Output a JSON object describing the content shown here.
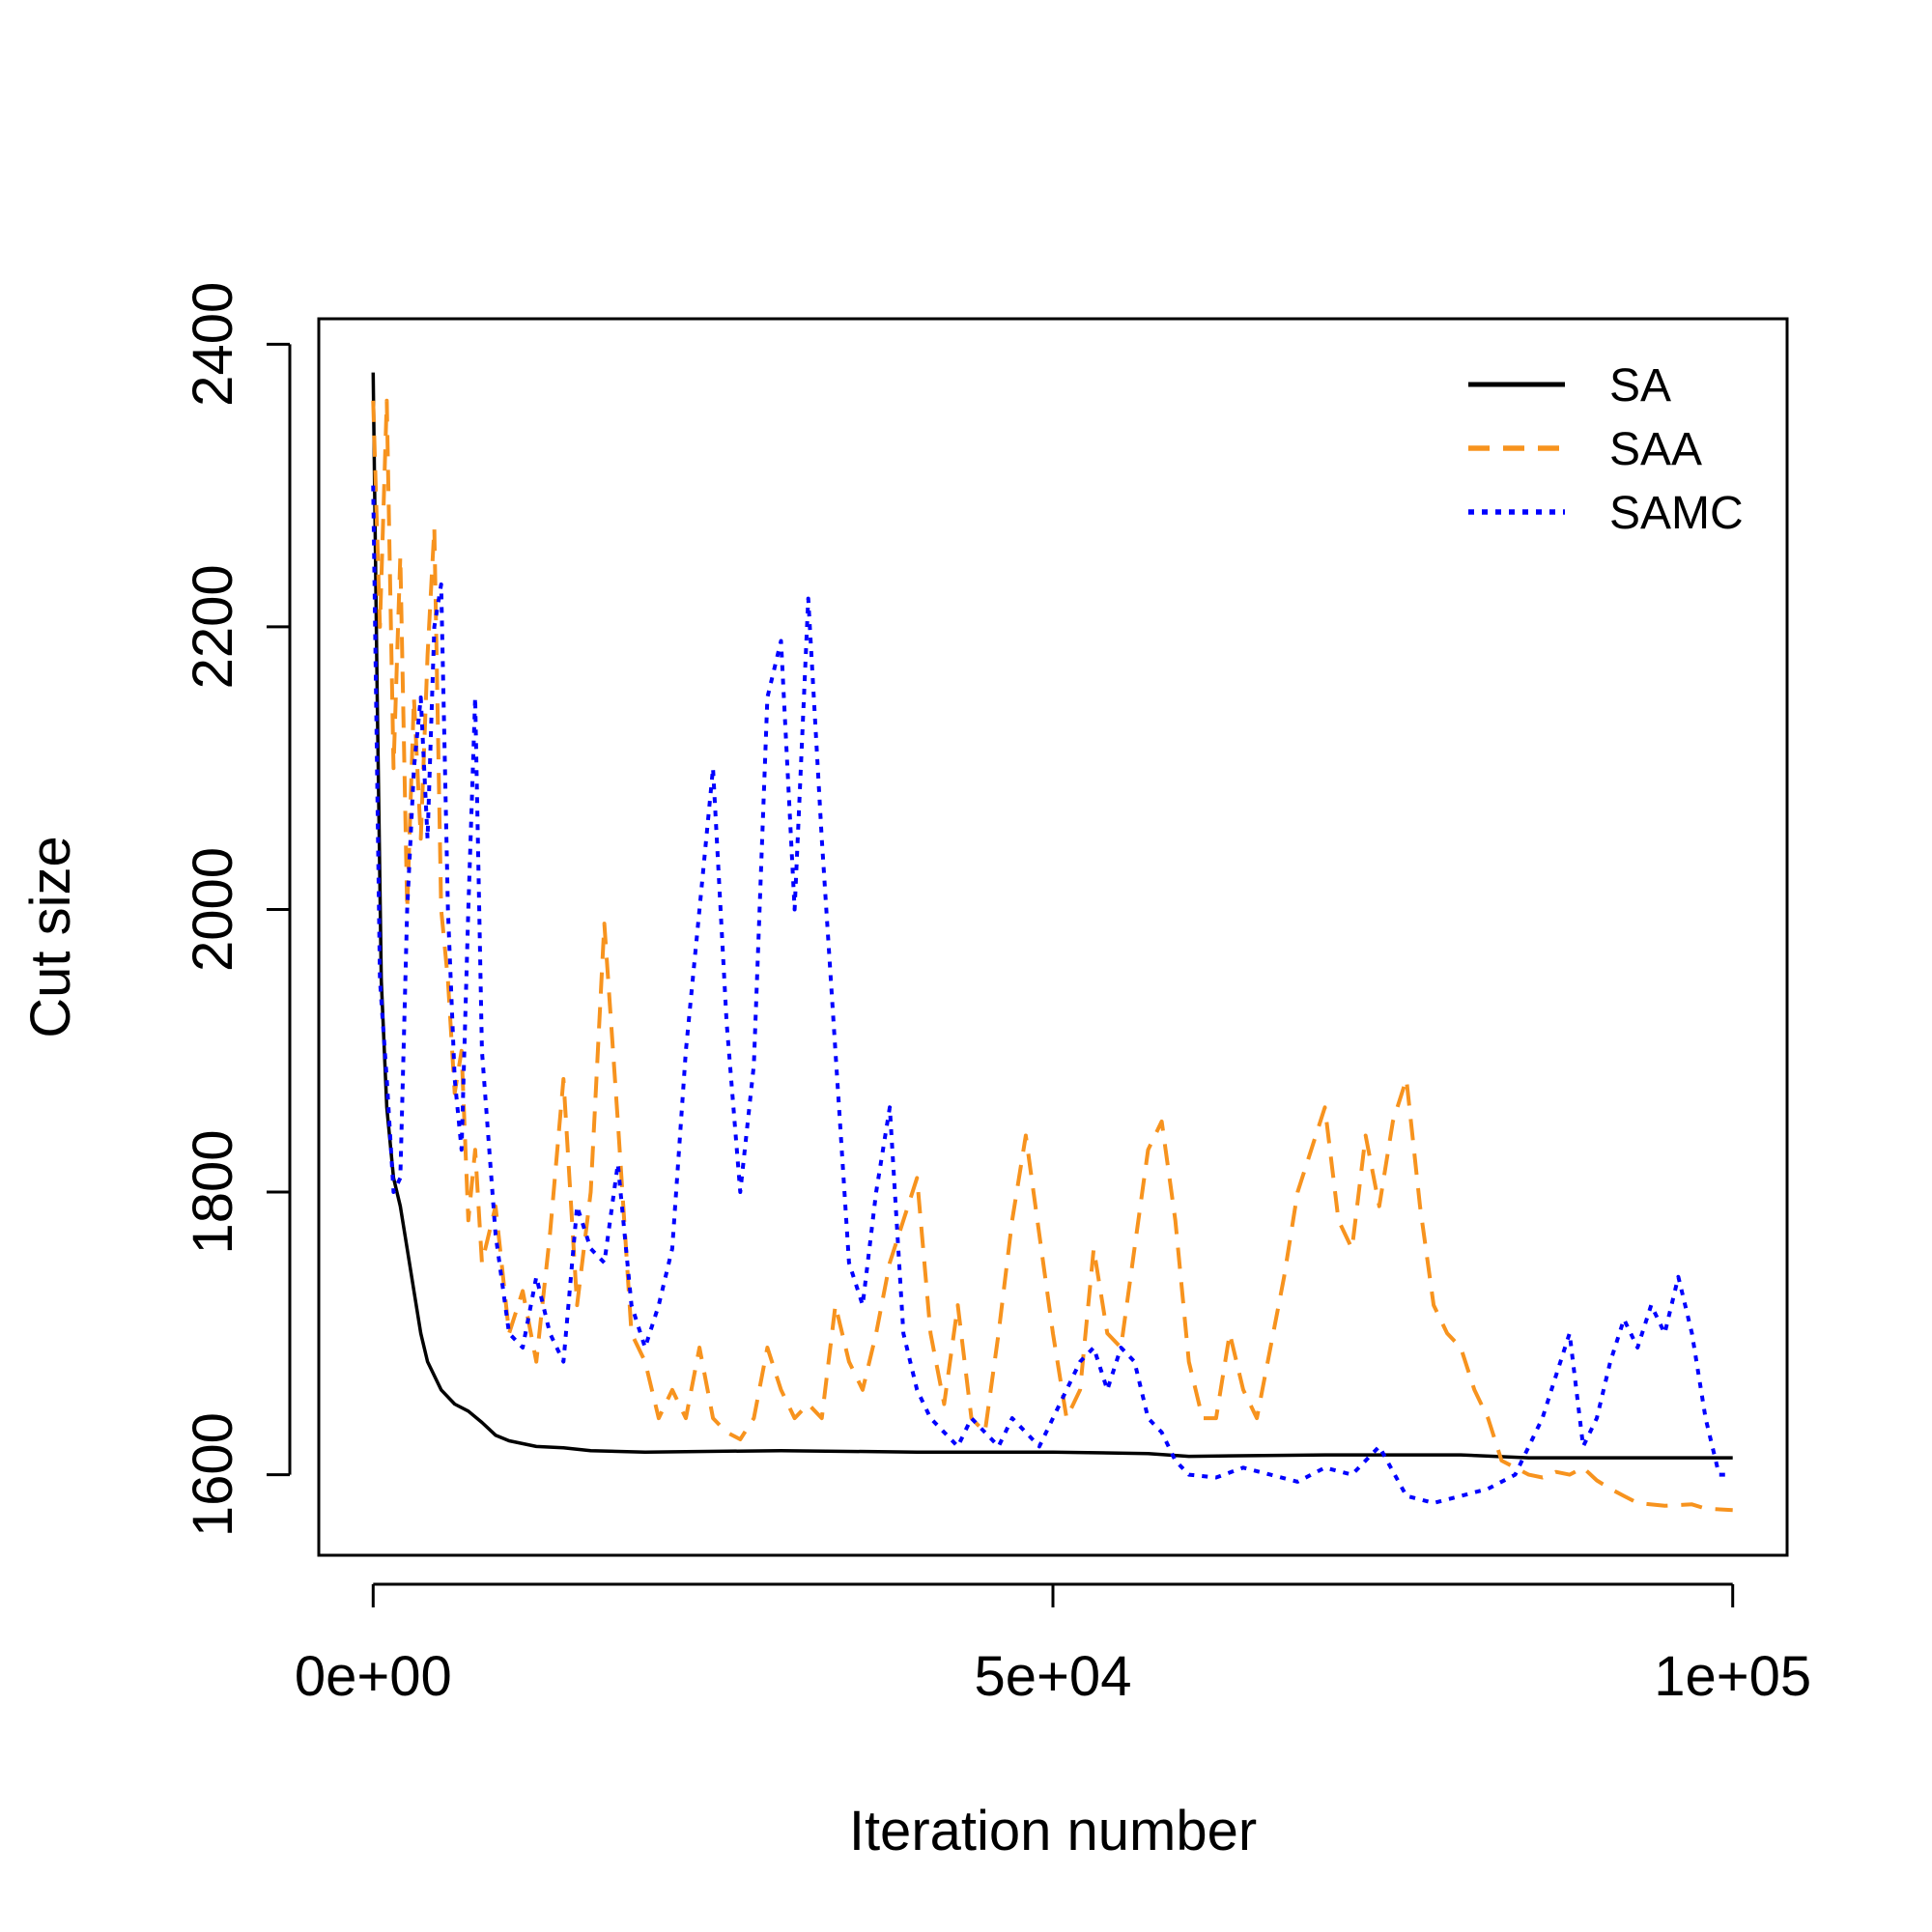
{
  "chart_data": {
    "type": "line",
    "title": "",
    "xlabel": "Iteration number",
    "ylabel": "Cut size",
    "xlim": [
      -4000,
      104000
    ],
    "ylim": [
      1543,
      2418
    ],
    "x_ticks": [
      0,
      50000,
      100000
    ],
    "x_tick_labels": [
      "0e+00",
      "5e+04",
      "1e+05"
    ],
    "y_ticks": [
      1600,
      1800,
      2000,
      2200,
      2400
    ],
    "y_tick_labels": [
      "1600",
      "1800",
      "2000",
      "2200",
      "2400"
    ],
    "grid": false,
    "legend_position": "top-right",
    "series": [
      {
        "name": "SA",
        "color": "#000000",
        "dash": "solid",
        "points": [
          [
            0,
            2380
          ],
          [
            300,
            2150
          ],
          [
            600,
            1950
          ],
          [
            1000,
            1860
          ],
          [
            1500,
            1810
          ],
          [
            2000,
            1790
          ],
          [
            2500,
            1760
          ],
          [
            3000,
            1730
          ],
          [
            3500,
            1700
          ],
          [
            4000,
            1680
          ],
          [
            5000,
            1660
          ],
          [
            6000,
            1650
          ],
          [
            7000,
            1645
          ],
          [
            8000,
            1637
          ],
          [
            9000,
            1628
          ],
          [
            10000,
            1624
          ],
          [
            12000,
            1620
          ],
          [
            14000,
            1619
          ],
          [
            16000,
            1617
          ],
          [
            20000,
            1616
          ],
          [
            30000,
            1617
          ],
          [
            40000,
            1616
          ],
          [
            50000,
            1616
          ],
          [
            57000,
            1615
          ],
          [
            60000,
            1613
          ],
          [
            70000,
            1614
          ],
          [
            80000,
            1614
          ],
          [
            85000,
            1612
          ],
          [
            90000,
            1612
          ],
          [
            100000,
            1612
          ]
        ]
      },
      {
        "name": "SAA",
        "color": "#F7931E",
        "dash": "long-dash",
        "points": [
          [
            0,
            2360
          ],
          [
            500,
            2200
          ],
          [
            1000,
            2360
          ],
          [
            1500,
            2100
          ],
          [
            2000,
            2250
          ],
          [
            2500,
            2000
          ],
          [
            3000,
            2150
          ],
          [
            3500,
            2050
          ],
          [
            4000,
            2180
          ],
          [
            4500,
            2270
          ],
          [
            5000,
            2000
          ],
          [
            5500,
            1950
          ],
          [
            6000,
            1870
          ],
          [
            6500,
            1900
          ],
          [
            7000,
            1780
          ],
          [
            7500,
            1830
          ],
          [
            8000,
            1750
          ],
          [
            9000,
            1790
          ],
          [
            10000,
            1700
          ],
          [
            11000,
            1730
          ],
          [
            12000,
            1680
          ],
          [
            13000,
            1770
          ],
          [
            14000,
            1880
          ],
          [
            15000,
            1720
          ],
          [
            16000,
            1800
          ],
          [
            17000,
            1990
          ],
          [
            18000,
            1850
          ],
          [
            19000,
            1700
          ],
          [
            20000,
            1680
          ],
          [
            21000,
            1640
          ],
          [
            22000,
            1660
          ],
          [
            23000,
            1640
          ],
          [
            24000,
            1690
          ],
          [
            25000,
            1640
          ],
          [
            26000,
            1630
          ],
          [
            27000,
            1625
          ],
          [
            28000,
            1640
          ],
          [
            29000,
            1690
          ],
          [
            30000,
            1660
          ],
          [
            31000,
            1640
          ],
          [
            32000,
            1650
          ],
          [
            33000,
            1640
          ],
          [
            34000,
            1720
          ],
          [
            35000,
            1680
          ],
          [
            36000,
            1660
          ],
          [
            37000,
            1700
          ],
          [
            38000,
            1750
          ],
          [
            39000,
            1780
          ],
          [
            40000,
            1810
          ],
          [
            41000,
            1700
          ],
          [
            42000,
            1650
          ],
          [
            43000,
            1720
          ],
          [
            44000,
            1640
          ],
          [
            45000,
            1630
          ],
          [
            46000,
            1700
          ],
          [
            47000,
            1780
          ],
          [
            48000,
            1840
          ],
          [
            49000,
            1770
          ],
          [
            50000,
            1700
          ],
          [
            51000,
            1640
          ],
          [
            52000,
            1660
          ],
          [
            53000,
            1760
          ],
          [
            54000,
            1700
          ],
          [
            55000,
            1690
          ],
          [
            56000,
            1760
          ],
          [
            57000,
            1830
          ],
          [
            58000,
            1850
          ],
          [
            59000,
            1780
          ],
          [
            60000,
            1680
          ],
          [
            61000,
            1640
          ],
          [
            62000,
            1640
          ],
          [
            63000,
            1700
          ],
          [
            64000,
            1660
          ],
          [
            65000,
            1640
          ],
          [
            66000,
            1690
          ],
          [
            67000,
            1740
          ],
          [
            68000,
            1800
          ],
          [
            69000,
            1830
          ],
          [
            70000,
            1860
          ],
          [
            71000,
            1780
          ],
          [
            72000,
            1760
          ],
          [
            73000,
            1840
          ],
          [
            74000,
            1790
          ],
          [
            75000,
            1850
          ],
          [
            76000,
            1880
          ],
          [
            77000,
            1790
          ],
          [
            78000,
            1720
          ],
          [
            79000,
            1700
          ],
          [
            80000,
            1690
          ],
          [
            81000,
            1660
          ],
          [
            82000,
            1640
          ],
          [
            83000,
            1610
          ],
          [
            84000,
            1605
          ],
          [
            85000,
            1600
          ],
          [
            86000,
            1598
          ],
          [
            87000,
            1602
          ],
          [
            88000,
            1600
          ],
          [
            89000,
            1605
          ],
          [
            90000,
            1596
          ],
          [
            91000,
            1590
          ],
          [
            92000,
            1585
          ],
          [
            93000,
            1580
          ],
          [
            95000,
            1578
          ],
          [
            97000,
            1579
          ],
          [
            98000,
            1576
          ],
          [
            100000,
            1575
          ]
        ]
      },
      {
        "name": "SAMC",
        "color": "#0000FF",
        "dash": "dotted",
        "points": [
          [
            0,
            2300
          ],
          [
            500,
            1950
          ],
          [
            1000,
            1880
          ],
          [
            1500,
            1800
          ],
          [
            2000,
            1810
          ],
          [
            2500,
            2000
          ],
          [
            3000,
            2100
          ],
          [
            3500,
            2150
          ],
          [
            4000,
            2050
          ],
          [
            4500,
            2200
          ],
          [
            5000,
            2230
          ],
          [
            5500,
            2000
          ],
          [
            6000,
            1880
          ],
          [
            6500,
            1830
          ],
          [
            7000,
            2000
          ],
          [
            7500,
            2150
          ],
          [
            8000,
            1900
          ],
          [
            9000,
            1770
          ],
          [
            10000,
            1700
          ],
          [
            11000,
            1690
          ],
          [
            12000,
            1740
          ],
          [
            13000,
            1700
          ],
          [
            14000,
            1680
          ],
          [
            15000,
            1790
          ],
          [
            16000,
            1760
          ],
          [
            17000,
            1750
          ],
          [
            18000,
            1820
          ],
          [
            19000,
            1720
          ],
          [
            20000,
            1690
          ],
          [
            21000,
            1720
          ],
          [
            22000,
            1760
          ],
          [
            23000,
            1900
          ],
          [
            24000,
            2000
          ],
          [
            25000,
            2100
          ],
          [
            26000,
            1920
          ],
          [
            27000,
            1800
          ],
          [
            28000,
            1890
          ],
          [
            29000,
            2150
          ],
          [
            30000,
            2190
          ],
          [
            31000,
            2000
          ],
          [
            32000,
            2220
          ],
          [
            33000,
            2050
          ],
          [
            34000,
            1900
          ],
          [
            35000,
            1750
          ],
          [
            36000,
            1720
          ],
          [
            37000,
            1800
          ],
          [
            38000,
            1860
          ],
          [
            39000,
            1700
          ],
          [
            40000,
            1660
          ],
          [
            41000,
            1640
          ],
          [
            42000,
            1630
          ],
          [
            43000,
            1620
          ],
          [
            44000,
            1640
          ],
          [
            45000,
            1630
          ],
          [
            46000,
            1620
          ],
          [
            47000,
            1640
          ],
          [
            48000,
            1630
          ],
          [
            49000,
            1620
          ],
          [
            50000,
            1640
          ],
          [
            51000,
            1660
          ],
          [
            52000,
            1680
          ],
          [
            53000,
            1690
          ],
          [
            54000,
            1660
          ],
          [
            55000,
            1690
          ],
          [
            56000,
            1680
          ],
          [
            57000,
            1640
          ],
          [
            58000,
            1630
          ],
          [
            59000,
            1610
          ],
          [
            60000,
            1600
          ],
          [
            62000,
            1598
          ],
          [
            64000,
            1605
          ],
          [
            66000,
            1600
          ],
          [
            68000,
            1595
          ],
          [
            70000,
            1605
          ],
          [
            72000,
            1600
          ],
          [
            74000,
            1620
          ],
          [
            76000,
            1585
          ],
          [
            78000,
            1580
          ],
          [
            80000,
            1585
          ],
          [
            82000,
            1590
          ],
          [
            84000,
            1600
          ],
          [
            85000,
            1620
          ],
          [
            86000,
            1640
          ],
          [
            87000,
            1670
          ],
          [
            88000,
            1700
          ],
          [
            89000,
            1620
          ],
          [
            90000,
            1640
          ],
          [
            91000,
            1680
          ],
          [
            92000,
            1710
          ],
          [
            93000,
            1690
          ],
          [
            94000,
            1720
          ],
          [
            95000,
            1700
          ],
          [
            96000,
            1740
          ],
          [
            97000,
            1700
          ],
          [
            98000,
            1640
          ],
          [
            99000,
            1600
          ],
          [
            100000,
            1600
          ]
        ]
      }
    ]
  }
}
